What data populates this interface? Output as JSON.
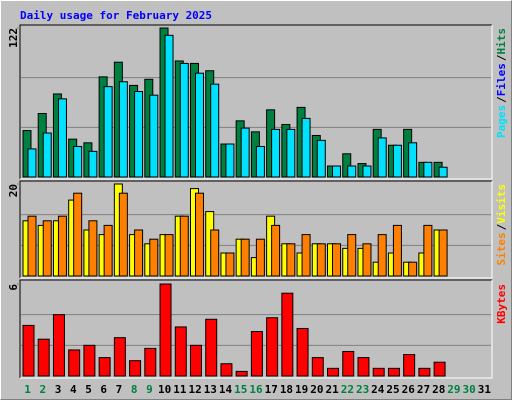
{
  "chart_data": [
    {
      "type": "bar",
      "title": "Daily usage for February 2025",
      "ylim": [
        0,
        122
      ],
      "yticks": [
        122
      ],
      "legend_separator": "/",
      "series": [
        {
          "name": "Hits",
          "color": "#008040",
          "values": [
            38,
            52,
            68,
            31,
            28,
            82,
            94,
            75,
            80,
            122,
            95,
            93,
            87,
            27,
            46,
            37,
            55,
            43,
            57,
            34,
            9,
            19,
            11,
            39,
            26,
            39,
            12,
            12,
            null,
            null,
            null
          ]
        },
        {
          "name": "Files",
          "color": "#0000ff",
          "values": [
            null,
            null,
            null,
            null,
            null,
            null,
            null,
            null,
            null,
            null,
            null,
            null,
            null,
            null,
            null,
            null,
            null,
            null,
            null,
            null,
            null,
            null,
            null,
            null,
            null,
            null,
            null,
            null,
            null,
            null,
            null
          ]
        },
        {
          "name": "Pages",
          "color": "#00e0ff",
          "values": [
            23,
            36,
            64,
            25,
            21,
            74,
            78,
            70,
            67,
            116,
            93,
            85,
            76,
            27,
            40,
            25,
            39,
            39,
            48,
            30,
            9,
            9,
            9,
            32,
            26,
            28,
            12,
            8,
            null,
            null,
            null
          ]
        }
      ]
    },
    {
      "type": "bar",
      "ylim": [
        0,
        20
      ],
      "yticks": [
        20
      ],
      "legend_separator": "/",
      "series": [
        {
          "name": "Visits",
          "color": "#ffff00",
          "values": [
            12,
            11,
            12,
            16.5,
            10,
            9,
            20,
            9,
            7,
            9,
            13,
            19,
            14,
            5,
            8,
            4,
            13,
            7,
            5,
            7,
            7,
            6,
            6,
            3,
            5,
            3,
            5,
            10,
            null,
            null,
            null
          ]
        },
        {
          "name": "Sites",
          "color": "#ff8000",
          "values": [
            13,
            12,
            13,
            18,
            12,
            11,
            18,
            10,
            8,
            9,
            13,
            18,
            10,
            5,
            8,
            8,
            11,
            7,
            9,
            7,
            7,
            9,
            7,
            9,
            11,
            3,
            11,
            10,
            null,
            null,
            null
          ]
        }
      ]
    },
    {
      "type": "bar",
      "ylim": [
        0,
        6
      ],
      "yticks": [
        6
      ],
      "categories": [
        "1",
        "2",
        "3",
        "4",
        "5",
        "6",
        "7",
        "8",
        "9",
        "10",
        "11",
        "12",
        "13",
        "14",
        "15",
        "16",
        "17",
        "18",
        "19",
        "20",
        "21",
        "22",
        "23",
        "24",
        "25",
        "26",
        "27",
        "28",
        "29",
        "30",
        "31"
      ],
      "category_colors": [
        "#008040",
        "#008040",
        "#000000",
        "#000000",
        "#000000",
        "#000000",
        "#000000",
        "#008040",
        "#008040",
        "#000000",
        "#000000",
        "#000000",
        "#000000",
        "#000000",
        "#008040",
        "#008040",
        "#000000",
        "#000000",
        "#000000",
        "#000000",
        "#000000",
        "#008040",
        "#008040",
        "#000000",
        "#000000",
        "#000000",
        "#000000",
        "#000000",
        "#008040",
        "#008040",
        "#000000"
      ],
      "series": [
        {
          "name": "KBytes",
          "color": "#ff0000",
          "values": [
            3.3,
            2.4,
            4.0,
            1.7,
            2.0,
            1.2,
            2.5,
            1.0,
            1.8,
            6.0,
            3.2,
            2.0,
            3.7,
            0.8,
            0.3,
            2.9,
            3.8,
            5.4,
            3.1,
            1.2,
            0.5,
            1.6,
            1.2,
            0.5,
            0.5,
            1.4,
            0.5,
            0.9,
            null,
            null,
            null
          ]
        }
      ]
    }
  ]
}
